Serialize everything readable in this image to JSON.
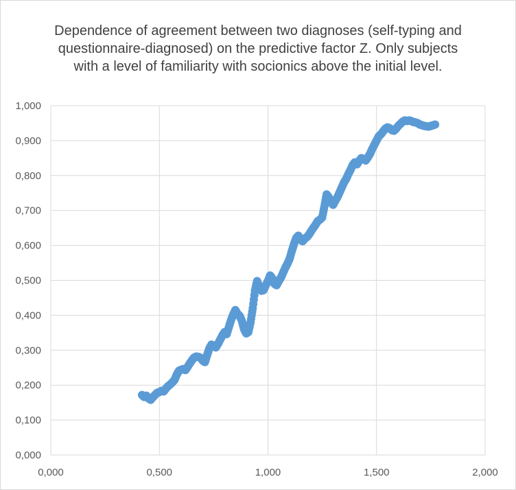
{
  "chart_data": {
    "type": "scatter",
    "title_lines": [
      "Dependence of agreement between two diagnoses (self-typing and",
      "questionnaire-diagnosed) on the predictive factor Z. Only subjects",
      "with a level of familiarity with socionics above the initial level."
    ],
    "xlabel": "",
    "ylabel": "",
    "xlim": [
      0,
      2
    ],
    "ylim": [
      0,
      1
    ],
    "x_ticks": [
      0,
      0.5,
      1,
      1.5,
      2
    ],
    "x_tick_labels": [
      "0,000",
      "0,500",
      "1,000",
      "1,500",
      "2,000"
    ],
    "y_ticks": [
      0,
      0.1,
      0.2,
      0.3,
      0.4,
      0.5,
      0.6,
      0.7,
      0.8,
      0.9,
      1
    ],
    "y_tick_labels": [
      "0,000",
      "0,100",
      "0,200",
      "0,300",
      "0,400",
      "0,500",
      "0,600",
      "0,700",
      "0,800",
      "0,900",
      "1,000"
    ],
    "grid": true,
    "legend": "none",
    "marker_color": "#5b9bd5",
    "series": [
      {
        "points": [
          [
            0.42,
            0.172
          ],
          [
            0.43,
            0.166
          ],
          [
            0.44,
            0.17
          ],
          [
            0.45,
            0.162
          ],
          [
            0.46,
            0.158
          ],
          [
            0.47,
            0.165
          ],
          [
            0.48,
            0.172
          ],
          [
            0.49,
            0.178
          ],
          [
            0.5,
            0.18
          ],
          [
            0.51,
            0.184
          ],
          [
            0.52,
            0.182
          ],
          [
            0.53,
            0.19
          ],
          [
            0.54,
            0.197
          ],
          [
            0.55,
            0.202
          ],
          [
            0.56,
            0.208
          ],
          [
            0.57,
            0.215
          ],
          [
            0.58,
            0.23
          ],
          [
            0.59,
            0.241
          ],
          [
            0.6,
            0.244
          ],
          [
            0.61,
            0.246
          ],
          [
            0.62,
            0.243
          ],
          [
            0.63,
            0.252
          ],
          [
            0.64,
            0.262
          ],
          [
            0.65,
            0.271
          ],
          [
            0.66,
            0.279
          ],
          [
            0.67,
            0.282
          ],
          [
            0.68,
            0.281
          ],
          [
            0.69,
            0.278
          ],
          [
            0.7,
            0.27
          ],
          [
            0.71,
            0.266
          ],
          [
            0.72,
            0.286
          ],
          [
            0.73,
            0.305
          ],
          [
            0.74,
            0.316
          ],
          [
            0.75,
            0.312
          ],
          [
            0.76,
            0.308
          ],
          [
            0.77,
            0.318
          ],
          [
            0.78,
            0.33
          ],
          [
            0.79,
            0.342
          ],
          [
            0.8,
            0.352
          ],
          [
            0.81,
            0.346
          ],
          [
            0.82,
            0.366
          ],
          [
            0.83,
            0.386
          ],
          [
            0.84,
            0.402
          ],
          [
            0.85,
            0.415
          ],
          [
            0.86,
            0.404
          ],
          [
            0.87,
            0.398
          ],
          [
            0.88,
            0.384
          ],
          [
            0.89,
            0.36
          ],
          [
            0.9,
            0.348
          ],
          [
            0.91,
            0.352
          ],
          [
            0.92,
            0.38
          ],
          [
            0.93,
            0.42
          ],
          [
            0.94,
            0.47
          ],
          [
            0.95,
            0.498
          ],
          [
            0.96,
            0.482
          ],
          [
            0.97,
            0.47
          ],
          [
            0.98,
            0.472
          ],
          [
            0.99,
            0.486
          ],
          [
            1.0,
            0.498
          ],
          [
            1.01,
            0.514
          ],
          [
            1.02,
            0.506
          ],
          [
            1.03,
            0.49
          ],
          [
            1.04,
            0.486
          ],
          [
            1.05,
            0.498
          ],
          [
            1.06,
            0.508
          ],
          [
            1.07,
            0.522
          ],
          [
            1.08,
            0.536
          ],
          [
            1.09,
            0.548
          ],
          [
            1.1,
            0.562
          ],
          [
            1.11,
            0.584
          ],
          [
            1.12,
            0.604
          ],
          [
            1.13,
            0.621
          ],
          [
            1.14,
            0.628
          ],
          [
            1.15,
            0.616
          ],
          [
            1.16,
            0.612
          ],
          [
            1.17,
            0.62
          ],
          [
            1.18,
            0.624
          ],
          [
            1.19,
            0.632
          ],
          [
            1.2,
            0.642
          ],
          [
            1.21,
            0.651
          ],
          [
            1.22,
            0.66
          ],
          [
            1.23,
            0.67
          ],
          [
            1.24,
            0.674
          ],
          [
            1.25,
            0.68
          ],
          [
            1.26,
            0.712
          ],
          [
            1.27,
            0.746
          ],
          [
            1.28,
            0.738
          ],
          [
            1.29,
            0.724
          ],
          [
            1.3,
            0.716
          ],
          [
            1.31,
            0.728
          ],
          [
            1.32,
            0.738
          ],
          [
            1.33,
            0.752
          ],
          [
            1.34,
            0.766
          ],
          [
            1.35,
            0.78
          ],
          [
            1.36,
            0.79
          ],
          [
            1.37,
            0.804
          ],
          [
            1.38,
            0.816
          ],
          [
            1.39,
            0.83
          ],
          [
            1.4,
            0.838
          ],
          [
            1.41,
            0.832
          ],
          [
            1.42,
            0.842
          ],
          [
            1.43,
            0.85
          ],
          [
            1.44,
            0.847
          ],
          [
            1.45,
            0.843
          ],
          [
            1.46,
            0.852
          ],
          [
            1.47,
            0.862
          ],
          [
            1.48,
            0.876
          ],
          [
            1.49,
            0.888
          ],
          [
            1.5,
            0.9
          ],
          [
            1.51,
            0.912
          ],
          [
            1.52,
            0.918
          ],
          [
            1.53,
            0.926
          ],
          [
            1.54,
            0.934
          ],
          [
            1.55,
            0.938
          ],
          [
            1.56,
            0.936
          ],
          [
            1.57,
            0.93
          ],
          [
            1.58,
            0.928
          ],
          [
            1.59,
            0.934
          ],
          [
            1.6,
            0.942
          ],
          [
            1.61,
            0.948
          ],
          [
            1.62,
            0.954
          ],
          [
            1.63,
            0.958
          ],
          [
            1.64,
            0.956
          ],
          [
            1.65,
            0.958
          ],
          [
            1.66,
            0.956
          ],
          [
            1.67,
            0.953
          ],
          [
            1.68,
            0.952
          ],
          [
            1.69,
            0.95
          ],
          [
            1.7,
            0.946
          ],
          [
            1.71,
            0.944
          ],
          [
            1.72,
            0.942
          ],
          [
            1.73,
            0.941
          ],
          [
            1.74,
            0.94
          ],
          [
            1.75,
            0.942
          ],
          [
            1.76,
            0.944
          ],
          [
            1.77,
            0.946
          ]
        ]
      }
    ]
  }
}
